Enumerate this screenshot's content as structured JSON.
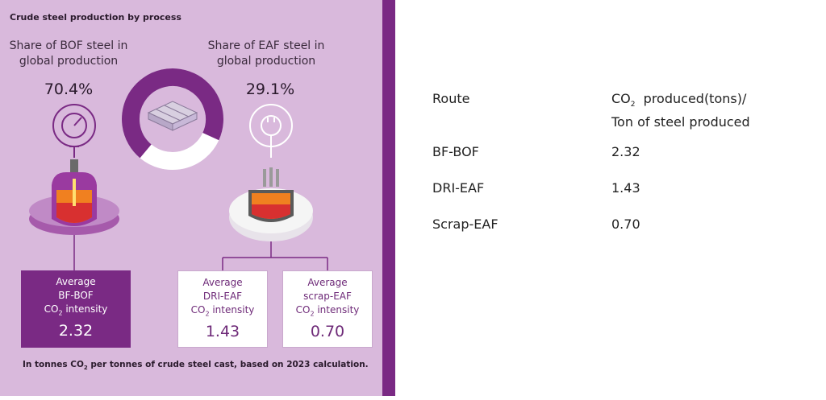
{
  "chart_data": {
    "type": "pie",
    "title": "Crude steel production by process",
    "shares": [
      {
        "name": "BOF",
        "label": "Share of BOF steel in global production",
        "value": 70.4,
        "display": "70.4%",
        "color": "#7a2a84"
      },
      {
        "name": "EAF",
        "label": "Share of EAF steel in global production",
        "value": 29.1,
        "display": "29.1%",
        "color": "#ffffff"
      }
    ],
    "intensity_boxes": [
      {
        "lines": [
          "Average",
          "BF-BOF",
          "CO2 intensity"
        ],
        "value": "2.32",
        "style": "dark"
      },
      {
        "lines": [
          "Average",
          "DRI-EAF",
          "CO2 intensity"
        ],
        "value": "1.43",
        "style": "light"
      },
      {
        "lines": [
          "Average",
          "scrap-EAF",
          "CO2 intensity"
        ],
        "value": "0.70",
        "style": "light"
      }
    ],
    "footnote": "In tonnes CO2 per tonnes of crude steel cast, based on 2023 calculation."
  },
  "table": {
    "header_route": "Route",
    "header_co2_prefix": "CO",
    "header_co2_sub": "2",
    "header_co2_rest": "  produced(tons)/",
    "header_co2_line2": "Ton of steel produced",
    "rows": [
      {
        "route": "BF-BOF",
        "value": "2.32"
      },
      {
        "route": "DRI-EAF",
        "value": "1.43"
      },
      {
        "route": "Scrap-EAF",
        "value": "0.70"
      }
    ]
  },
  "colors": {
    "panel_bg": "#d9b9dc",
    "accent_purple": "#7a2a84",
    "furnace_orange": "#f08020",
    "furnace_red": "#d83030"
  }
}
